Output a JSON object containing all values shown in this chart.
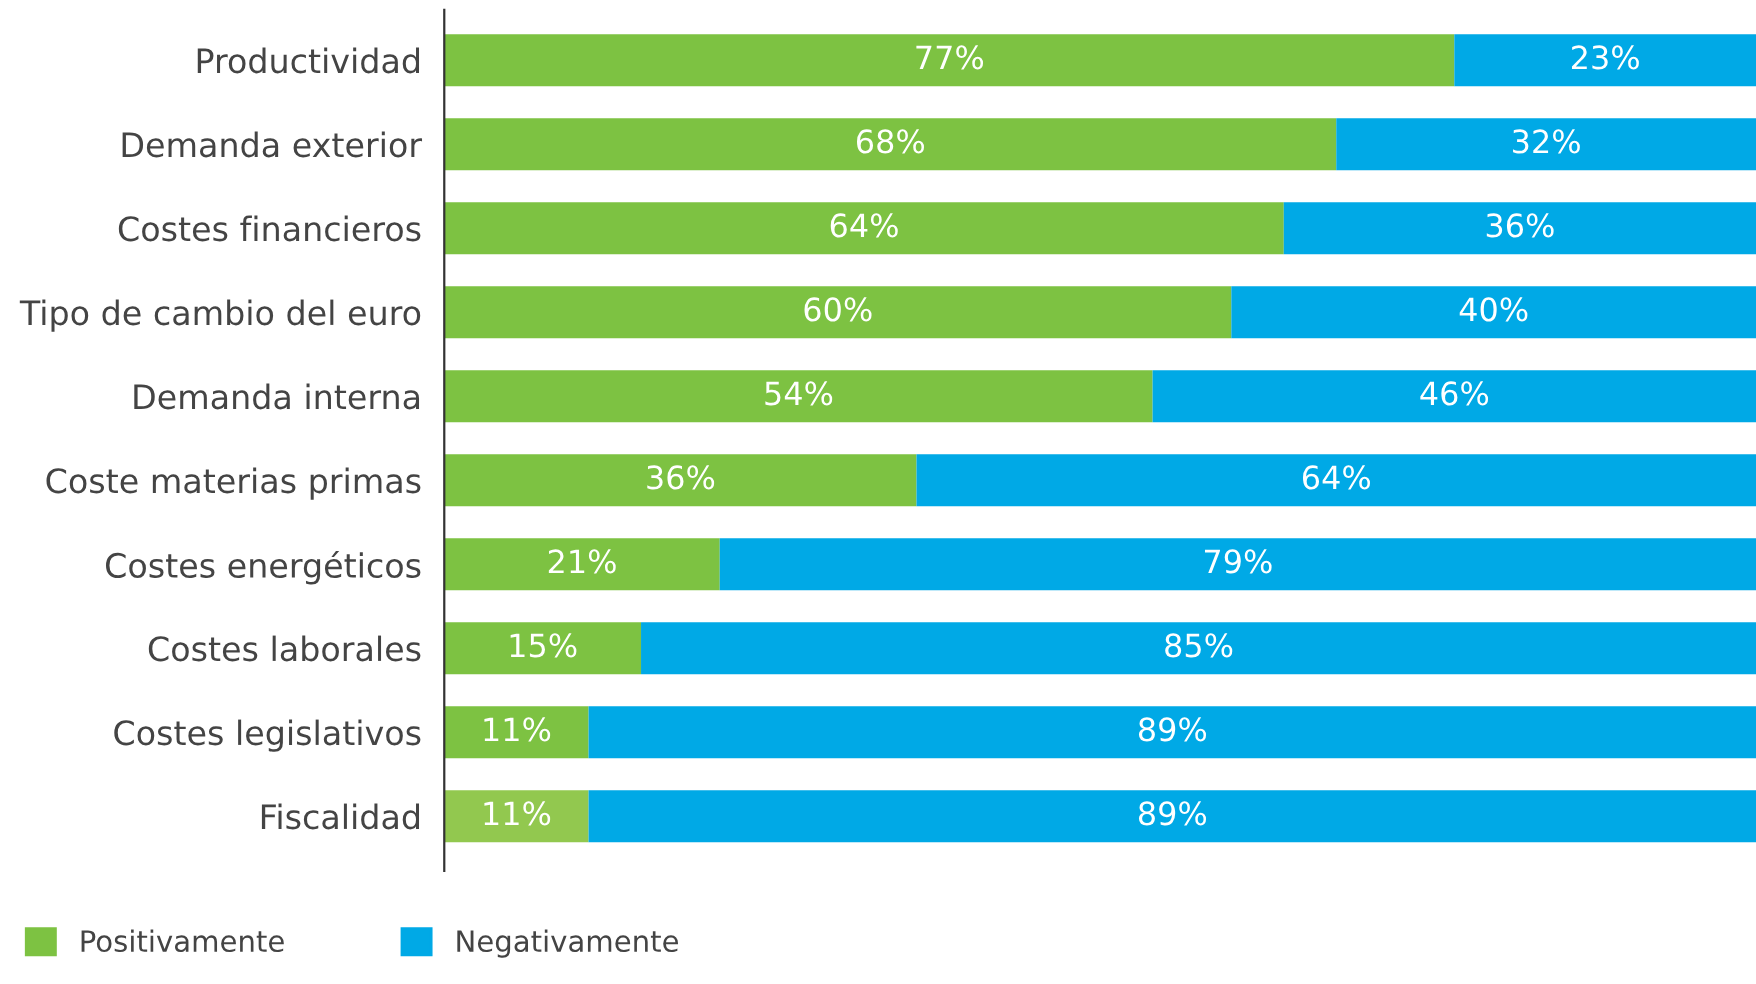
{
  "chart_data": {
    "type": "bar",
    "orientation": "horizontal",
    "stacked": true,
    "categories": [
      "Productividad",
      "Demanda exterior",
      "Costes financieros",
      "Tipo de cambio del euro",
      "Demanda interna",
      "Coste materias primas",
      "Costes energéticos",
      "Costes laborales",
      "Costes legislativos",
      "Fiscalidad"
    ],
    "series": [
      {
        "name": "Positivamente",
        "color": "#7dc242",
        "colors": [
          "#7dc242",
          "#7dc242",
          "#7dc242",
          "#7dc242",
          "#7dc242",
          "#7dc242",
          "#7dc242",
          "#7dc242",
          "#7dc242",
          "#92c84f"
        ],
        "values": [
          77,
          68,
          64,
          60,
          54,
          36,
          21,
          15,
          11,
          11
        ],
        "value_labels": [
          "77%",
          "68%",
          "64%",
          "60%",
          "54%",
          "36%",
          "21%",
          "15%",
          "11%",
          "11%"
        ]
      },
      {
        "name": "Negativamente",
        "color": "#00a9e6",
        "values": [
          23,
          32,
          36,
          40,
          46,
          64,
          79,
          85,
          89,
          89
        ],
        "value_labels": [
          "23%",
          "32%",
          "36%",
          "40%",
          "46%",
          "64%",
          "79%",
          "85%",
          "89%",
          "89%"
        ]
      }
    ],
    "xlim": [
      0,
      100
    ],
    "tick_labels": "y",
    "grid": false,
    "legend": "bottom left"
  }
}
